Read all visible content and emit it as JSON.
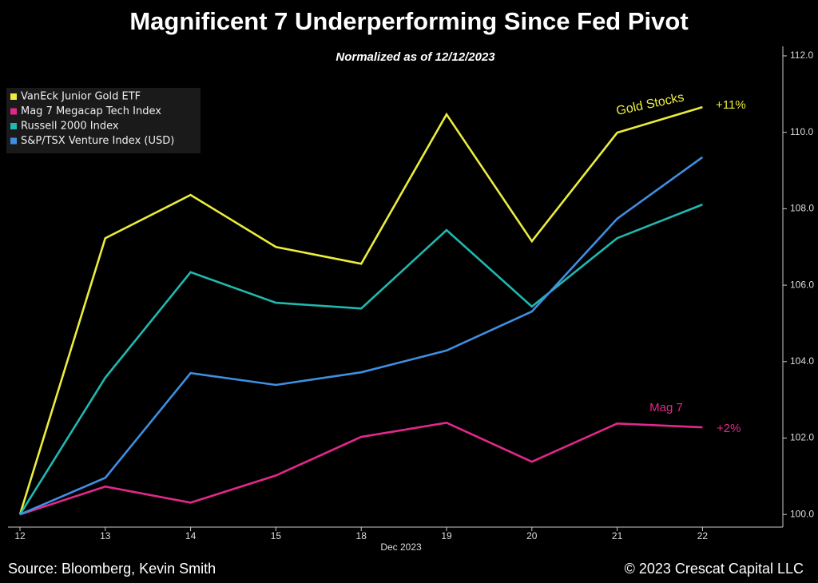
{
  "chart_data": {
    "type": "line",
    "title": "Magnificent 7 Underperforming Since Fed Pivot",
    "subtitle": "Normalized as of 12/12/2023",
    "x_label": "Dec 2023",
    "categories": [
      "12",
      "13",
      "14",
      "15",
      "18",
      "19",
      "20",
      "21",
      "22"
    ],
    "series": [
      {
        "name": "VanEck Junior Gold ETF",
        "color": "#ecec3e",
        "values": [
          100,
          107.23,
          108.36,
          107.0,
          106.56,
          110.47,
          107.15,
          109.99,
          110.66
        ]
      },
      {
        "name": "Mag 7 Megacap Tech Index",
        "color": "#e2288c",
        "values": [
          100,
          100.73,
          100.31,
          101.02,
          102.03,
          102.4,
          101.38,
          102.38,
          102.28
        ]
      },
      {
        "name": "Russell 2000 Index",
        "color": "#20b8b0",
        "values": [
          100,
          103.58,
          106.34,
          105.54,
          105.39,
          107.44,
          105.44,
          107.23,
          108.11
        ]
      },
      {
        "name": "S&P/TSX Venture Index (USD)",
        "color": "#3f8fe2",
        "values": [
          100,
          100.96,
          103.7,
          103.39,
          103.72,
          104.29,
          105.31,
          107.74,
          109.35
        ]
      }
    ],
    "ylim": [
      99.67,
      112.25
    ],
    "yticks": [
      {
        "value": 100,
        "label": "100.0"
      },
      {
        "value": 102,
        "label": "102.0"
      },
      {
        "value": 104,
        "label": "104.0"
      },
      {
        "value": 106,
        "label": "106.0"
      },
      {
        "value": 108,
        "label": "108.0"
      },
      {
        "value": 110,
        "label": "110.0"
      },
      {
        "value": 112,
        "label": "112.0"
      }
    ],
    "legend": "top-left",
    "annotations": [
      "Gold Stocks",
      "+11%",
      "Mag 7",
      "+2%"
    ],
    "source": "Source: Bloomberg, Kevin Smith",
    "copyright": "© 2023 Crescat Capital LLC"
  }
}
